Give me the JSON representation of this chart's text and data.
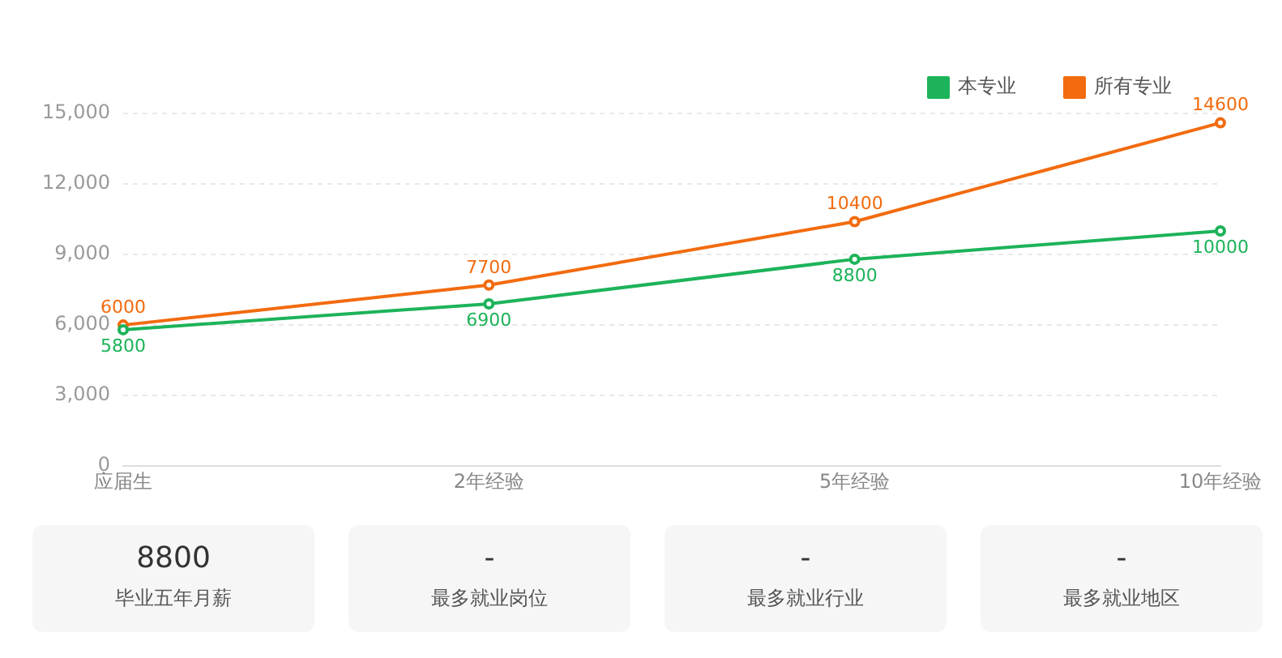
{
  "chart_data": [
    {
      "type": "line",
      "categories": [
        "应届生",
        "2年经验",
        "5年经验",
        "10年经验"
      ],
      "series": [
        {
          "name": "本专业",
          "color": "#1db35a",
          "values": [
            5800,
            6900,
            8800,
            10000
          ]
        },
        {
          "name": "所有专业",
          "color": "#f26b0f",
          "values": [
            6000,
            7700,
            10400,
            14600
          ]
        }
      ],
      "ylim": [
        0,
        15000
      ],
      "yticks": [
        0,
        {
          "value": 3000,
          "label": "3,000"
        },
        {
          "value": 6000,
          "label": "6,000"
        },
        {
          "value": 9000,
          "label": "9,000"
        },
        {
          "value": 12000,
          "label": "12,000"
        },
        {
          "value": 15000,
          "label": "15,000"
        }
      ],
      "grid": "y",
      "legend": "top right",
      "marker": "circle",
      "line_style": "solid",
      "data_labels": true
    },
    {
      "type": "other",
      "annotations": [
        "8800",
        "毕业五年月薪",
        "-",
        "最多就业岗位",
        "-",
        "最多就业行业",
        "-",
        "最多就业地区"
      ]
    }
  ]
}
